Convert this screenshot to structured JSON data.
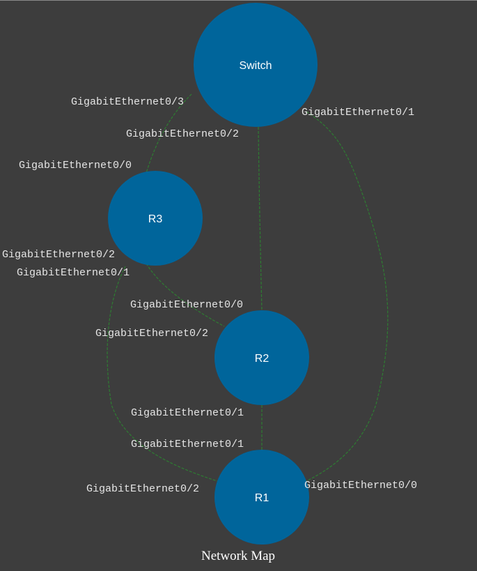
{
  "diagram": {
    "title": "Network Map",
    "colors": {
      "background": "#3d3d3d",
      "node_fill": "#00659b",
      "link_stroke": "#2e7d32",
      "node_text": "#ffffff",
      "port_text": "#e6e6e6"
    },
    "nodes": [
      {
        "id": "switch",
        "label": "Switch"
      },
      {
        "id": "r3",
        "label": "R3"
      },
      {
        "id": "r2",
        "label": "R2"
      },
      {
        "id": "r1",
        "label": "R1"
      }
    ],
    "links": [
      {
        "from": "switch",
        "to": "r3",
        "from_port": "GigabitEthernet0/3",
        "to_port": "GigabitEthernet0/0"
      },
      {
        "from": "switch",
        "to": "r2",
        "from_port": "GigabitEthernet0/2",
        "to_port": "GigabitEthernet0/0"
      },
      {
        "from": "switch",
        "to": "r1",
        "from_port": "GigabitEthernet0/1",
        "to_port": "GigabitEthernet0/0"
      },
      {
        "from": "r3",
        "to": "r2",
        "from_port": "GigabitEthernet0/1",
        "to_port": "GigabitEthernet0/2"
      },
      {
        "from": "r3",
        "to": "r1",
        "from_port": "GigabitEthernet0/2",
        "to_port": "GigabitEthernet0/2"
      },
      {
        "from": "r2",
        "to": "r1",
        "from_port": "GigabitEthernet0/1",
        "to_port": "GigabitEthernet0/1"
      }
    ]
  }
}
